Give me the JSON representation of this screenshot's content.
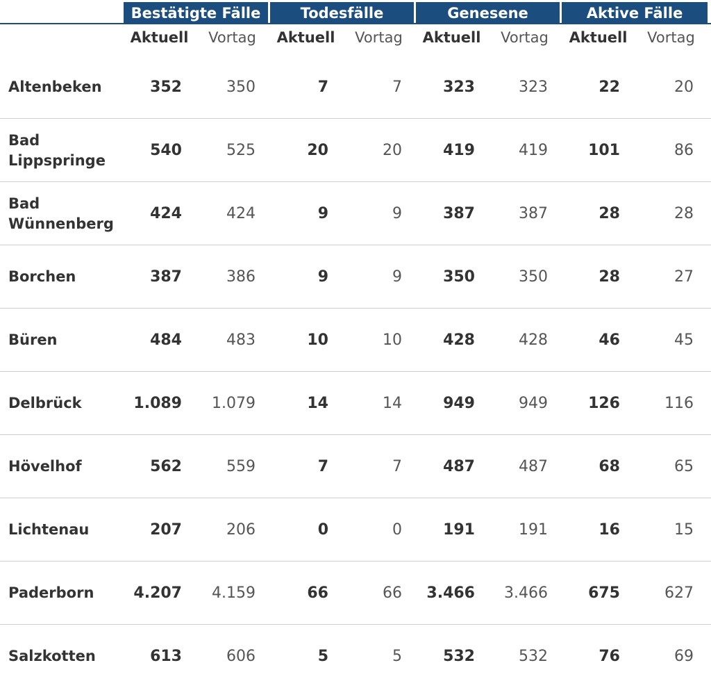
{
  "groups": [
    "Bestätigte Fälle",
    "Todesfälle",
    "Genesene",
    "Aktive Fälle"
  ],
  "sub": {
    "current": "Aktuell",
    "previous": "Vortag"
  },
  "rows": [
    {
      "name": "Altenbeken",
      "values": [
        "352",
        "350",
        "7",
        "7",
        "323",
        "323",
        "22",
        "20"
      ]
    },
    {
      "name": "Bad Lippspringe",
      "values": [
        "540",
        "525",
        "20",
        "20",
        "419",
        "419",
        "101",
        "86"
      ]
    },
    {
      "name": "Bad Wünnenberg",
      "values": [
        "424",
        "424",
        "9",
        "9",
        "387",
        "387",
        "28",
        "28"
      ]
    },
    {
      "name": "Borchen",
      "values": [
        "387",
        "386",
        "9",
        "9",
        "350",
        "350",
        "28",
        "27"
      ]
    },
    {
      "name": "Büren",
      "values": [
        "484",
        "483",
        "10",
        "10",
        "428",
        "428",
        "46",
        "45"
      ]
    },
    {
      "name": "Delbrück",
      "values": [
        "1.089",
        "1.079",
        "14",
        "14",
        "949",
        "949",
        "126",
        "116"
      ]
    },
    {
      "name": "Hövelhof",
      "values": [
        "562",
        "559",
        "7",
        "7",
        "487",
        "487",
        "68",
        "65"
      ]
    },
    {
      "name": "Lichtenau",
      "values": [
        "207",
        "206",
        "0",
        "0",
        "191",
        "191",
        "16",
        "15"
      ]
    },
    {
      "name": "Paderborn",
      "values": [
        "4.207",
        "4.159",
        "66",
        "66",
        "3.466",
        "3.466",
        "675",
        "627"
      ]
    },
    {
      "name": "Salzkotten",
      "values": [
        "613",
        "606",
        "5",
        "5",
        "532",
        "532",
        "76",
        "69"
      ]
    }
  ]
}
